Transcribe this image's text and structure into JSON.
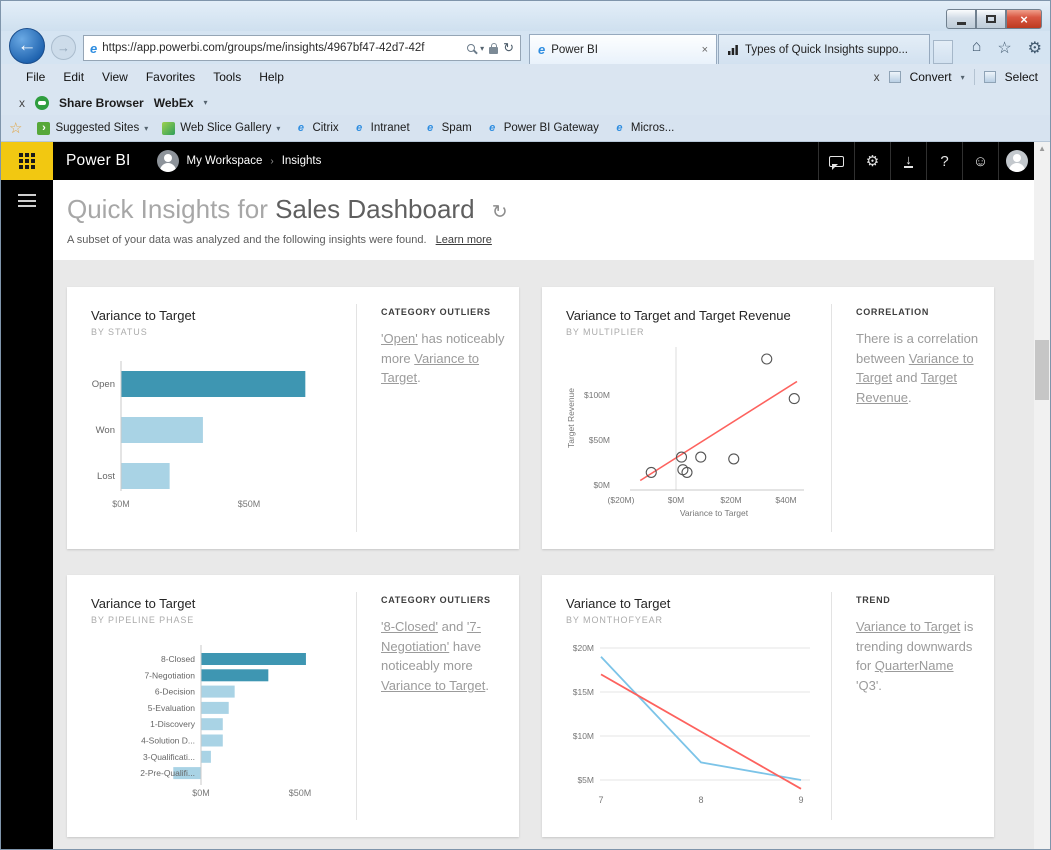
{
  "browser": {
    "address": {
      "url": "https://app.powerbi.com/groups/me/insights/4967bf47-42d7-42f"
    },
    "tabs": [
      {
        "label": "Power BI"
      },
      {
        "label": "Types of Quick Insights suppo..."
      }
    ],
    "menus": [
      "File",
      "Edit",
      "View",
      "Favorites",
      "Tools",
      "Help"
    ],
    "menu_actions": {
      "close": "x",
      "convert": "Convert",
      "select": "Select"
    },
    "command_bar": {
      "close": "x",
      "share_browser": "Share Browser",
      "webex": "WebEx"
    },
    "favorites_bar": {
      "items": [
        {
          "label": "Suggested Sites",
          "dropdown": true
        },
        {
          "label": "Web Slice Gallery",
          "dropdown": true
        },
        {
          "label": "Citrix"
        },
        {
          "label": "Intranet"
        },
        {
          "label": "Spam"
        },
        {
          "label": "Power BI Gateway"
        },
        {
          "label": "Micros..."
        }
      ]
    }
  },
  "app_header": {
    "brand": "Power BI",
    "breadcrumb": [
      "My Workspace",
      "Insights"
    ]
  },
  "page": {
    "title_prefix": "Quick Insights for",
    "title_name": "Sales Dashboard",
    "subtitle": "A subset of your data was analyzed and the following insights were found.",
    "learn_more": "Learn more"
  },
  "colors": {
    "accent_yellow": "#F2C811",
    "bar_highlight": "#3E96B2",
    "bar_normal": "#A9D3E5",
    "trend_red": "#FD625E",
    "line_blue": "#7CC4E8"
  },
  "cards": [
    {
      "title": "Variance to Target",
      "subtitle": "BY STATUS",
      "insight": {
        "heading": "CATEGORY OUTLIERS",
        "segments": [
          {
            "text": "'Open'",
            "link": true
          },
          {
            "text": " has noticeably more ",
            "link": false
          },
          {
            "text": "Variance to Target",
            "link": true
          },
          {
            "text": ".",
            "link": false
          }
        ]
      },
      "chart": {
        "type": "bar",
        "orientation": "horizontal",
        "unit": "M",
        "categories": [
          "Open",
          "Won",
          "Lost"
        ],
        "values": [
          72,
          32,
          19
        ],
        "highlight": [
          true,
          false,
          false
        ],
        "xticks": [
          {
            "value": 0,
            "label": "$0M"
          },
          {
            "value": 50,
            "label": "$50M"
          }
        ]
      }
    },
    {
      "title": "Variance to Target and Target Revenue",
      "subtitle": "BY MULTIPLIER",
      "insight": {
        "heading": "CORRELATION",
        "segments": [
          {
            "text": "There is a correlation between ",
            "link": false
          },
          {
            "text": "Variance to Target",
            "link": true
          },
          {
            "text": " and ",
            "link": false
          },
          {
            "text": "Target Revenue",
            "link": true
          },
          {
            "text": ".",
            "link": false
          }
        ]
      },
      "chart": {
        "type": "scatter",
        "xlabel": "Variance to Target",
        "ylabel": "Target Revenue",
        "unit": "M",
        "points": [
          [
            -9,
            14
          ],
          [
            2,
            31
          ],
          [
            2.5,
            17
          ],
          [
            4,
            14
          ],
          [
            9,
            31
          ],
          [
            21,
            29
          ],
          [
            33,
            140
          ],
          [
            43,
            96
          ]
        ],
        "trend": [
          [
            -13,
            5
          ],
          [
            44,
            115
          ]
        ],
        "xticks": [
          {
            "value": -20,
            "label": "($20M)"
          },
          {
            "value": 0,
            "label": "$0M"
          },
          {
            "value": 20,
            "label": "$20M"
          },
          {
            "value": 40,
            "label": "$40M"
          }
        ],
        "yticks": [
          {
            "value": 0,
            "label": "$0M"
          },
          {
            "value": 50,
            "label": "$50M"
          },
          {
            "value": 100,
            "label": "$100M"
          }
        ]
      }
    },
    {
      "title": "Variance to Target",
      "subtitle": "BY PIPELINE PHASE",
      "insight": {
        "heading": "CATEGORY OUTLIERS",
        "segments": [
          {
            "text": "'8-Closed'",
            "link": true
          },
          {
            "text": " and ",
            "link": false
          },
          {
            "text": "'7-Negotiation'",
            "link": true
          },
          {
            "text": " have noticeably more ",
            "link": false
          },
          {
            "text": "Variance to Target",
            "link": true
          },
          {
            "text": ".",
            "link": false
          }
        ]
      },
      "chart": {
        "type": "bar",
        "orientation": "horizontal",
        "unit": "M",
        "categories": [
          "8-Closed",
          "7-Negotiation",
          "6-Decision",
          "5-Evaluation",
          "1-Discovery",
          "4-Solution D...",
          "3-Qualificati...",
          "2-Pre-Qualifi..."
        ],
        "values": [
          53,
          34,
          17,
          14,
          11,
          11,
          5,
          -14
        ],
        "highlight": [
          true,
          true,
          false,
          false,
          false,
          false,
          false,
          false
        ],
        "xticks": [
          {
            "value": 0,
            "label": "$0M"
          },
          {
            "value": 50,
            "label": "$50M"
          }
        ]
      }
    },
    {
      "title": "Variance to Target",
      "subtitle": "BY MONTHOFYEAR",
      "insight": {
        "heading": "TREND",
        "segments": [
          {
            "text": "Variance to Target",
            "link": true
          },
          {
            "text": " is trending downwards for ",
            "link": false
          },
          {
            "text": "QuarterName",
            "link": true
          },
          {
            "text": " 'Q3'.",
            "link": false
          }
        ]
      },
      "chart": {
        "type": "line",
        "unit": "M",
        "x": [
          "7",
          "8",
          "9"
        ],
        "series": [
          {
            "name": "actual",
            "color": "#7CC4E8",
            "values": [
              19,
              7,
              5
            ]
          },
          {
            "name": "trend",
            "color": "#FD625E",
            "values": [
              17,
              10.5,
              4
            ]
          }
        ],
        "yticks": [
          {
            "value": 5,
            "label": "$5M"
          },
          {
            "value": 10,
            "label": "$10M"
          },
          {
            "value": 15,
            "label": "$15M"
          },
          {
            "value": 20,
            "label": "$20M"
          }
        ]
      }
    }
  ]
}
